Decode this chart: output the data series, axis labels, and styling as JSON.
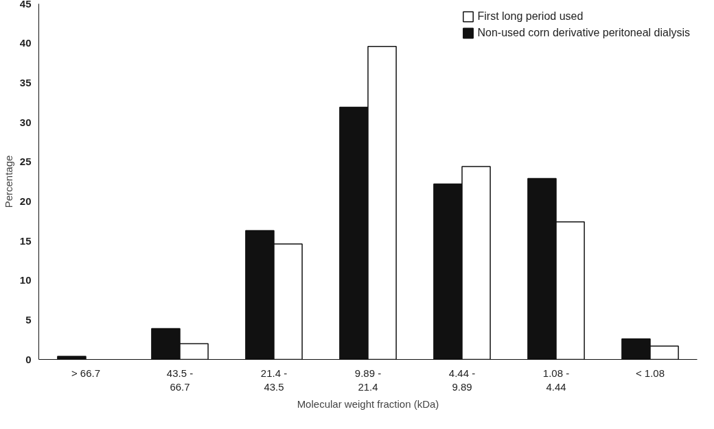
{
  "chart_data": {
    "type": "bar",
    "xlabel": "Molecular weight fraction (kDa)",
    "ylabel": "Percentage",
    "categories": [
      "> 66.7",
      "43.5 -\n66.7",
      "21.4 -\n43.5",
      "9.89 -\n21.4",
      "4.44 -\n9.89",
      "1.08 -\n4.44",
      "< 1.08"
    ],
    "series": [
      {
        "name": "Non-used corn derivative peritoneal dialysis",
        "color": "#111111",
        "values": [
          0.4,
          3.9,
          16.3,
          31.9,
          22.2,
          22.9,
          2.6
        ]
      },
      {
        "name": "First long period used",
        "color": "#ffffff",
        "values": [
          null,
          2.0,
          14.6,
          39.6,
          24.4,
          17.4,
          1.7
        ]
      }
    ],
    "ylim": [
      0,
      45
    ],
    "yticks": [
      0,
      5,
      10,
      15,
      20,
      25,
      30,
      35,
      40,
      45
    ],
    "grid": false,
    "legend": "top right"
  }
}
